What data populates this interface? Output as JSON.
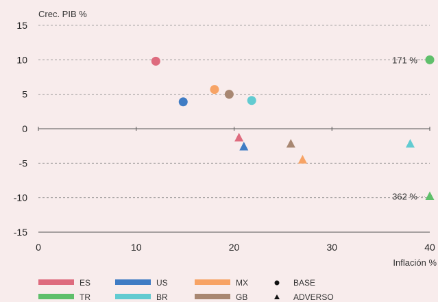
{
  "chart_data": {
    "type": "scatter",
    "xlabel": "Inflación %",
    "ylabel": "Crec. PIB %",
    "xlim": [
      0,
      40
    ],
    "ylim": [
      -15,
      15
    ],
    "x_ticks": [
      0,
      10,
      20,
      30,
      40
    ],
    "y_ticks": [
      15,
      10,
      5,
      0,
      -5,
      -10,
      -15
    ],
    "grid": "horizontal dashed",
    "legend_position": "bottom",
    "series": [
      {
        "name": "ES",
        "color": "#de6b7e",
        "points": [
          {
            "scenario": "BASE",
            "x": 12.0,
            "y": 9.8
          },
          {
            "scenario": "ADVERSO",
            "x": 20.5,
            "y": -1.3
          }
        ]
      },
      {
        "name": "US",
        "color": "#3f7cc4",
        "points": [
          {
            "scenario": "BASE",
            "x": 14.8,
            "y": 3.9
          },
          {
            "scenario": "ADVERSO",
            "x": 21.0,
            "y": -2.6
          }
        ]
      },
      {
        "name": "MX",
        "color": "#f7a365",
        "points": [
          {
            "scenario": "BASE",
            "x": 18.0,
            "y": 5.7
          },
          {
            "scenario": "ADVERSO",
            "x": 27.0,
            "y": -4.5
          }
        ]
      },
      {
        "name": "TR",
        "color": "#5fbf6b",
        "points": [
          {
            "scenario": "BASE",
            "x": 40.0,
            "y": 10.0
          },
          {
            "scenario": "ADVERSO",
            "x": 40.0,
            "y": -9.8
          }
        ]
      },
      {
        "name": "BR",
        "color": "#62cbd1",
        "points": [
          {
            "scenario": "BASE",
            "x": 21.8,
            "y": 4.1
          },
          {
            "scenario": "ADVERSO",
            "x": 38.0,
            "y": -2.2
          }
        ]
      },
      {
        "name": "GB",
        "color": "#a88772",
        "points": [
          {
            "scenario": "BASE",
            "x": 19.5,
            "y": 5.0
          },
          {
            "scenario": "ADVERSO",
            "x": 25.8,
            "y": -2.2
          }
        ]
      }
    ],
    "annotations": [
      {
        "text": "171 %",
        "x": 40,
        "y": 10.0
      },
      {
        "text": "362 %",
        "x": 40,
        "y": -9.8
      }
    ],
    "legend": {
      "series": [
        "ES",
        "US",
        "MX",
        "TR",
        "BR",
        "GB"
      ],
      "markers": [
        {
          "label": "BASE",
          "shape": "circle"
        },
        {
          "label": "ADVERSO",
          "shape": "triangle"
        }
      ]
    }
  }
}
